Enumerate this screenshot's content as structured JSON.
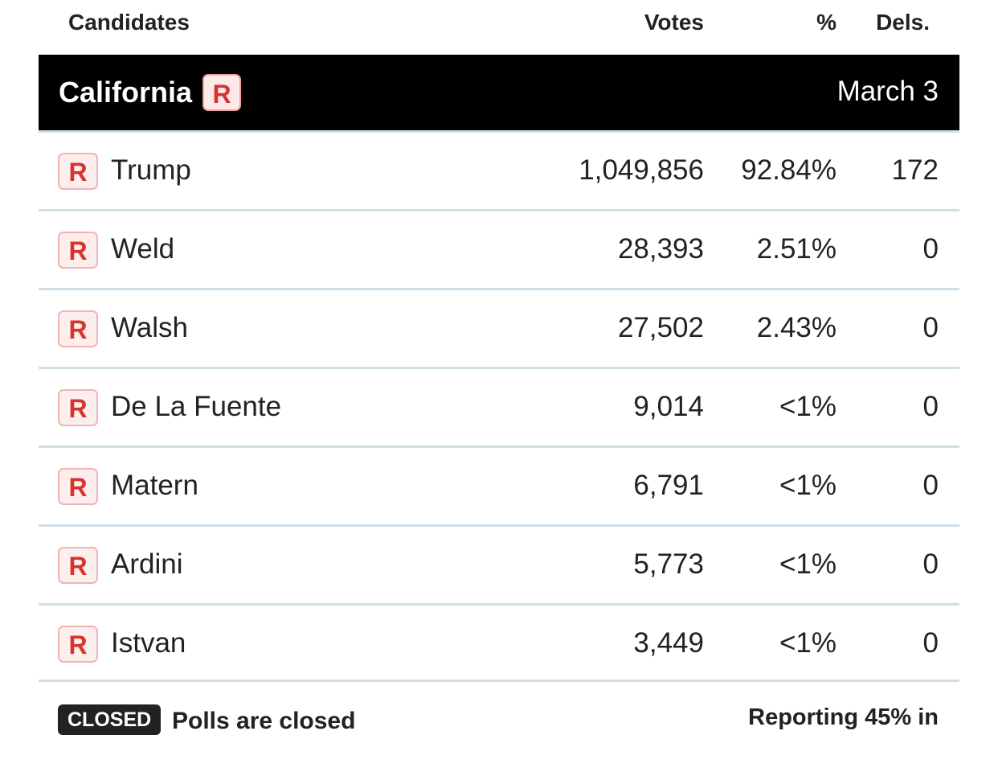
{
  "columns": {
    "candidates": "Candidates",
    "votes": "Votes",
    "percent": "%",
    "delegates": "Dels."
  },
  "race": {
    "state": "California",
    "party": "R",
    "date": "March 3"
  },
  "candidates": [
    {
      "party": "R",
      "name": "Trump",
      "votes": "1,049,856",
      "percent": "92.84%",
      "delegates": "172"
    },
    {
      "party": "R",
      "name": "Weld",
      "votes": "28,393",
      "percent": "2.51%",
      "delegates": "0"
    },
    {
      "party": "R",
      "name": "Walsh",
      "votes": "27,502",
      "percent": "2.43%",
      "delegates": "0"
    },
    {
      "party": "R",
      "name": "De La Fuente",
      "votes": "9,014",
      "percent": "<1%",
      "delegates": "0"
    },
    {
      "party": "R",
      "name": "Matern",
      "votes": "6,791",
      "percent": "<1%",
      "delegates": "0"
    },
    {
      "party": "R",
      "name": "Ardini",
      "votes": "5,773",
      "percent": "<1%",
      "delegates": "0"
    },
    {
      "party": "R",
      "name": "Istvan",
      "votes": "3,449",
      "percent": "<1%",
      "delegates": "0"
    }
  ],
  "footer": {
    "status_badge": "CLOSED",
    "status_text": "Polls are closed",
    "reporting": "Reporting 45% in"
  },
  "colors": {
    "republican_red": "#d6342e",
    "header_bar": "#000000",
    "row_divider": "#cfdfe6"
  }
}
